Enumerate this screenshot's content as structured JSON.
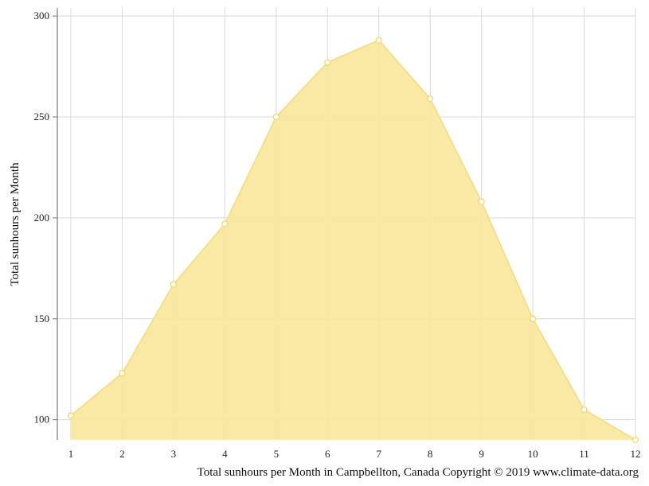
{
  "chart_data": {
    "type": "area",
    "title": "",
    "ylabel": "Total sunhours per Month",
    "xlabel": "",
    "caption": "Total sunhours per Month in Campbellton, Canada Copyright © 2019 www.climate-data.org",
    "x": [
      1,
      2,
      3,
      4,
      5,
      6,
      7,
      8,
      9,
      10,
      11,
      12
    ],
    "x_tick_labels": [
      "1",
      "2",
      "3",
      "4",
      "5",
      "6",
      "7",
      "8",
      "9",
      "10",
      "11",
      "12"
    ],
    "y_ticks": [
      100,
      150,
      200,
      250,
      300
    ],
    "y_tick_labels": [
      "100",
      "150",
      "200",
      "250",
      "300"
    ],
    "ylim": [
      90,
      304
    ],
    "grid": true,
    "series": [
      {
        "values": [
          102,
          123,
          167,
          197,
          250,
          277,
          288,
          259,
          208,
          150,
          105,
          90
        ],
        "fill_color": "#f8e79a",
        "line_color": "#f5df8a",
        "marker_fill": "#ffffff",
        "marker_stroke": "#f1d86a"
      }
    ],
    "grid_color": "#d9d9d9",
    "axis_color": "#777777"
  }
}
